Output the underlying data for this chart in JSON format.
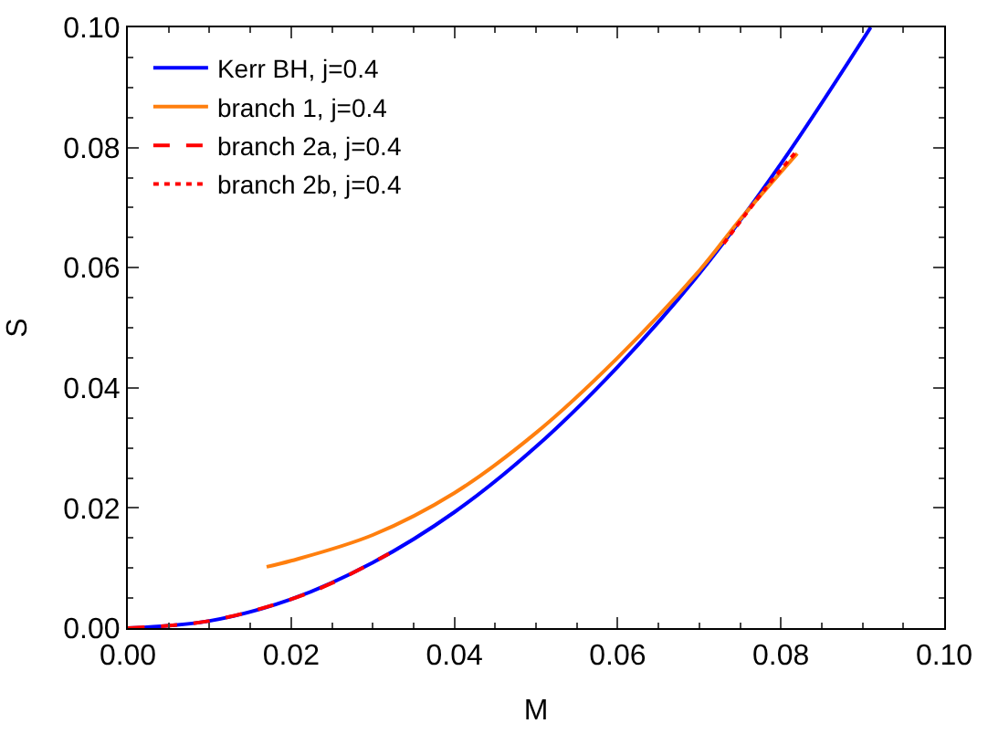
{
  "chart_data": {
    "type": "line",
    "xlabel": "M",
    "ylabel": "S",
    "xlim": [
      0,
      0.1
    ],
    "ylim": [
      0,
      0.1
    ],
    "xticks": [
      {
        "value": 0,
        "label": "0.00"
      },
      {
        "value": 0.02,
        "label": "0.02"
      },
      {
        "value": 0.04,
        "label": "0.04"
      },
      {
        "value": 0.06,
        "label": "0.06"
      },
      {
        "value": 0.08,
        "label": "0.08"
      },
      {
        "value": 0.1,
        "label": "0.10"
      }
    ],
    "yticks": [
      {
        "value": 0,
        "label": "0.00"
      },
      {
        "value": 0.02,
        "label": "0.02"
      },
      {
        "value": 0.04,
        "label": "0.04"
      },
      {
        "value": 0.06,
        "label": "0.06"
      },
      {
        "value": 0.08,
        "label": "0.08"
      },
      {
        "value": 0.1,
        "label": "0.10"
      }
    ],
    "legend": "top left",
    "marker": "none",
    "series": [
      {
        "name": "Kerr BH, j=0.4",
        "color": "#0000ff",
        "line_style": "solid",
        "x": [
          0,
          0.01,
          0.02,
          0.03,
          0.04,
          0.05,
          0.06,
          0.07,
          0.08,
          0.091
        ],
        "values": [
          0,
          0.0012,
          0.0048,
          0.0109,
          0.0193,
          0.0302,
          0.0435,
          0.059,
          0.0773,
          0.1
        ]
      },
      {
        "name": "branch 1, j=0.4",
        "color": "#ff7f0e",
        "line_style": "solid",
        "x": [
          0.017,
          0.02,
          0.03,
          0.04,
          0.05,
          0.06,
          0.07,
          0.075,
          0.082
        ],
        "values": [
          0.0102,
          0.0112,
          0.0155,
          0.0225,
          0.0325,
          0.045,
          0.0595,
          0.068,
          0.079
        ]
      },
      {
        "name": "branch 2a, j=0.4",
        "color": "#ff0000",
        "line_style": "dashed",
        "x": [
          0,
          0.01,
          0.02,
          0.025,
          0.032
        ],
        "values": [
          0,
          0.0012,
          0.0048,
          0.0075,
          0.0124
        ]
      },
      {
        "name": "branch 2b, j=0.4",
        "color": "#ff0000",
        "line_style": "dotted",
        "x": [
          0.073,
          0.078,
          0.082
        ],
        "values": [
          0.064,
          0.073,
          0.0795
        ]
      }
    ]
  }
}
